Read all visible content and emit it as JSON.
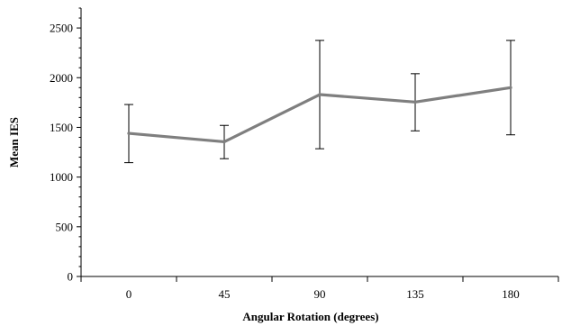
{
  "chart_data": {
    "type": "line",
    "title": "",
    "xlabel": "Angular Rotation (degrees)",
    "ylabel": "Mean IES",
    "categories": [
      "0",
      "45",
      "90",
      "135",
      "180"
    ],
    "series": [
      {
        "values": [
          1440,
          1355,
          1830,
          1755,
          1900
        ],
        "error_low": [
          1145,
          1185,
          1285,
          1465,
          1425
        ],
        "error_high": [
          1730,
          1520,
          2375,
          2040,
          2375
        ],
        "color": "#7f7f7f"
      }
    ],
    "yticks": [
      "0",
      "500",
      "1000",
      "1500",
      "2000",
      "2500"
    ],
    "ylim": [
      0,
      2700
    ],
    "grid": false,
    "legend": "none"
  }
}
